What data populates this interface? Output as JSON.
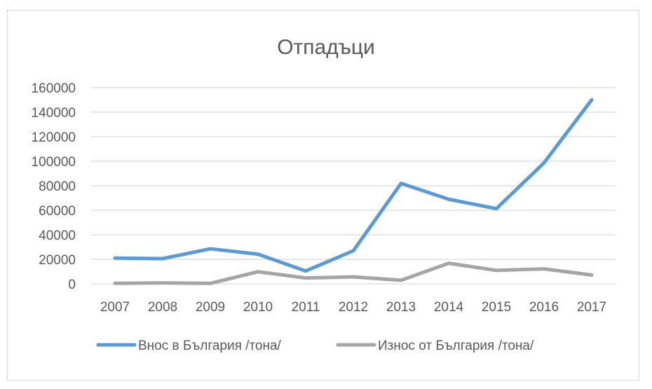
{
  "chart_data": {
    "type": "line",
    "title": "Отпадъци",
    "xlabel": "",
    "ylabel": "",
    "categories": [
      "2007",
      "2008",
      "2009",
      "2010",
      "2011",
      "2012",
      "2013",
      "2014",
      "2015",
      "2016",
      "2017"
    ],
    "ylim": [
      0,
      160000
    ],
    "yticks": [
      0,
      20000,
      40000,
      60000,
      80000,
      100000,
      120000,
      140000,
      160000
    ],
    "grid": true,
    "legend_position": "bottom",
    "series": [
      {
        "name": "Внос в България /тона/",
        "color": "#5b9bd5",
        "values": [
          21000,
          20600,
          28600,
          24200,
          10500,
          27000,
          81900,
          69000,
          61300,
          98700,
          150100
        ]
      },
      {
        "name": "Износ от България /тона/",
        "color": "#a5a5a5",
        "values": [
          400,
          800,
          400,
          9900,
          4800,
          5700,
          2900,
          16800,
          11000,
          12200,
          7200
        ]
      }
    ]
  }
}
